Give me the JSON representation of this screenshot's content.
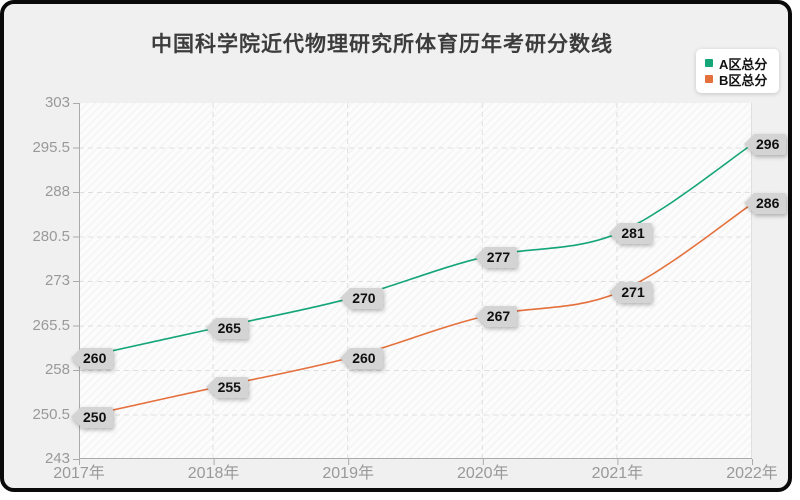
{
  "chart_data": {
    "type": "line",
    "title": "中国科学院近代物理研究所体育历年考研分数线",
    "categories": [
      "2017年",
      "2018年",
      "2019年",
      "2020年",
      "2021年",
      "2022年"
    ],
    "series": [
      {
        "name": "A区总分",
        "color": "#14a578",
        "values": [
          260,
          265,
          270,
          277,
          281,
          296
        ]
      },
      {
        "name": "B区总分",
        "color": "#e4703c",
        "values": [
          250,
          255,
          260,
          267,
          271,
          286
        ]
      }
    ],
    "yticks": [
      243,
      250.5,
      258,
      265.5,
      273,
      280.5,
      288,
      295.5,
      303
    ],
    "ylim": [
      243,
      303
    ],
    "xlabel": "",
    "ylabel": "",
    "smooth": true,
    "grid": true,
    "legend_position": "top-right",
    "data_labels": true
  },
  "styles": {
    "frame_border": "#0a0a0a",
    "canvas_bg": "#f0f0f0",
    "plot_bg": "#fcfcfc",
    "axis_color": "#aaaaaa",
    "tick_label_color": "#999999",
    "grid_color": "#dfdfdf",
    "title_color": "#3c3c3c",
    "callout_bg": "#d4d4d4",
    "callout_text": "#101010"
  }
}
